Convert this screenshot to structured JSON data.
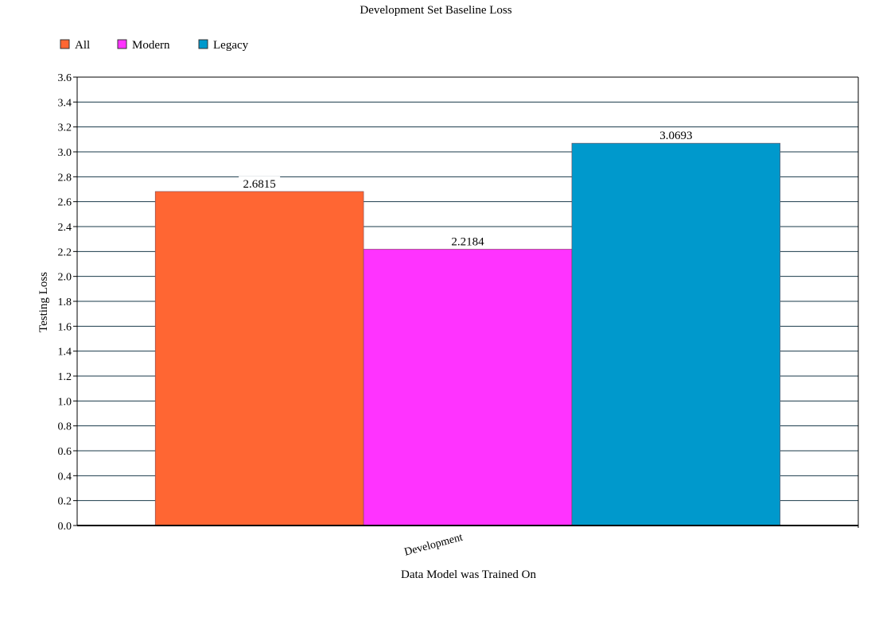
{
  "chart_data": {
    "type": "bar",
    "title": "Development Set Baseline Loss",
    "xlabel": "Data Model was Trained On",
    "ylabel": "Testing Loss",
    "categories": [
      "Development"
    ],
    "series": [
      {
        "name": "All",
        "color": "#ff6633",
        "values": [
          2.6815
        ],
        "value_labels": [
          "2.6815"
        ]
      },
      {
        "name": "Modern",
        "color": "#ff33ff",
        "values": [
          2.2184
        ],
        "value_labels": [
          "2.2184"
        ]
      },
      {
        "name": "Legacy",
        "color": "#0099cc",
        "values": [
          3.0693
        ],
        "value_labels": [
          "3.0693"
        ]
      }
    ],
    "ylim": [
      0,
      3.6
    ],
    "ytick_step": 0.2,
    "ytick_labels": [
      "0.0",
      "0.2",
      "0.4",
      "0.6",
      "0.8",
      "1.0",
      "1.2",
      "1.4",
      "1.6",
      "1.8",
      "2.0",
      "2.2",
      "2.4",
      "2.6",
      "2.8",
      "3.0",
      "3.2",
      "3.4",
      "3.6"
    ],
    "grid": true,
    "legend_position": "top-left",
    "gridline_color": "#1a3a4a"
  }
}
